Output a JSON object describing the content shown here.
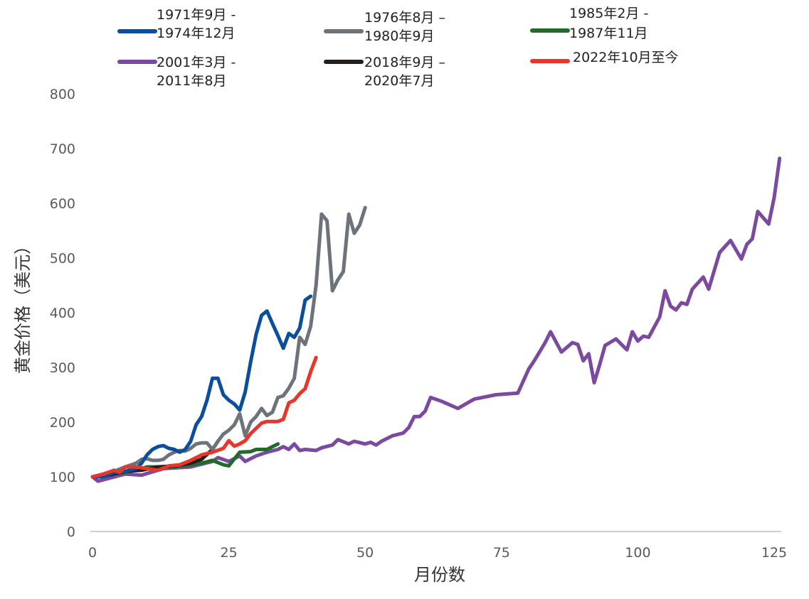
{
  "chart_data": {
    "type": "line",
    "title": "",
    "xlabel": "月份数",
    "ylabel": "黄金价格（美元）",
    "xlim": [
      0,
      125
    ],
    "ylim": [
      0,
      800
    ],
    "xticks": [
      "0",
      "25",
      "50",
      "75",
      "100",
      "125"
    ],
    "yticks": [
      "0",
      "100",
      "200",
      "300",
      "400",
      "500",
      "600",
      "700",
      "800"
    ],
    "grid": false,
    "legend_position": "top",
    "series": [
      {
        "name": "1971年9月 - 1974年12月",
        "legend_lines": [
          "1971年9月 -",
          "1974年12月"
        ],
        "color": "#0b4f9c",
        "x": [
          0,
          2,
          4,
          6,
          8,
          9,
          10,
          11,
          12,
          13,
          14,
          15,
          16,
          17,
          18,
          19,
          20,
          21,
          22,
          23,
          24,
          25,
          26,
          27,
          28,
          29,
          30,
          31,
          32,
          33,
          34,
          35,
          36,
          37,
          38,
          39,
          40
        ],
        "y": [
          100,
          100,
          108,
          110,
          115,
          125,
          140,
          150,
          155,
          157,
          152,
          150,
          145,
          150,
          165,
          195,
          210,
          240,
          280,
          280,
          250,
          240,
          233,
          222,
          255,
          310,
          360,
          395,
          403,
          380,
          358,
          335,
          362,
          355,
          372,
          423,
          430
        ]
      },
      {
        "name": "1976年8月 – 1980年9月",
        "legend_lines": [
          "1976年8月 –",
          "1980年9月"
        ],
        "color": "#6d737a",
        "x": [
          0,
          2,
          4,
          6,
          8,
          9,
          10,
          11,
          12,
          13,
          14,
          15,
          16,
          17,
          18,
          19,
          20,
          21,
          22,
          23,
          24,
          25,
          26,
          27,
          28,
          29,
          30,
          31,
          32,
          33,
          34,
          35,
          36,
          37,
          38,
          39,
          40,
          41,
          42,
          43,
          44,
          45,
          46,
          47,
          48,
          49,
          50
        ],
        "y": [
          100,
          102,
          110,
          118,
          125,
          132,
          133,
          130,
          130,
          132,
          140,
          145,
          148,
          147,
          152,
          160,
          162,
          162,
          150,
          165,
          178,
          185,
          195,
          215,
          175,
          200,
          210,
          225,
          212,
          218,
          245,
          248,
          262,
          280,
          355,
          342,
          375,
          450,
          580,
          568,
          440,
          460,
          475,
          580,
          545,
          560,
          592
        ]
      },
      {
        "name": "1985年2月 - 1987年11月",
        "legend_lines": [
          "1985年2月 -",
          "1987年11月"
        ],
        "color": "#1e6b2a",
        "x": [
          0,
          2,
          4,
          6,
          8,
          10,
          12,
          15,
          18,
          20,
          22,
          24,
          25,
          27,
          29,
          30,
          32,
          34
        ],
        "y": [
          100,
          100,
          105,
          108,
          112,
          118,
          118,
          118,
          122,
          125,
          130,
          122,
          120,
          145,
          146,
          150,
          150,
          160
        ]
      },
      {
        "name": "2001年3月 - 2011年8月",
        "legend_lines": [
          "2001年3月 -",
          "2011年8月"
        ],
        "color": "#7b4aa0",
        "x": [
          0,
          1,
          6,
          9,
          13,
          18,
          22,
          23,
          25,
          27,
          28,
          30,
          32,
          34,
          35,
          36,
          37,
          38,
          39,
          41,
          42,
          44,
          45,
          47,
          48,
          50,
          51,
          52,
          53,
          55,
          57,
          58,
          59,
          60,
          61,
          62,
          64,
          67,
          70,
          74,
          78,
          80,
          81,
          83,
          84,
          86,
          88,
          89,
          90,
          91,
          92,
          93,
          94,
          96,
          98,
          99,
          100,
          101,
          102,
          104,
          105,
          106,
          107,
          108,
          109,
          110,
          112,
          113,
          115,
          117,
          119,
          120,
          121,
          122,
          124,
          125,
          126
        ],
        "y": [
          100,
          92,
          105,
          103,
          115,
          118,
          128,
          135,
          128,
          138,
          128,
          138,
          145,
          150,
          155,
          150,
          160,
          148,
          150,
          148,
          153,
          158,
          168,
          160,
          165,
          160,
          163,
          158,
          165,
          175,
          180,
          190,
          210,
          210,
          220,
          245,
          238,
          225,
          242,
          250,
          253,
          297,
          312,
          345,
          365,
          328,
          345,
          342,
          312,
          325,
          272,
          305,
          340,
          352,
          332,
          365,
          348,
          357,
          355,
          392,
          440,
          412,
          405,
          418,
          415,
          443,
          465,
          443,
          510,
          532,
          498,
          525,
          535,
          585,
          562,
          610,
          682
        ]
      },
      {
        "name": "2018年9月 – 2020年7月",
        "legend_lines": [
          "2018年9月 –",
          "2020年7月"
        ],
        "color": "#231f1c",
        "x": [
          0,
          3,
          6,
          9,
          12,
          15,
          18,
          20,
          22,
          23
        ],
        "y": [
          100,
          103,
          110,
          112,
          118,
          120,
          125,
          132,
          150,
          165
        ]
      },
      {
        "name": "2022年10月至今",
        "legend_lines": [
          "2022年10月至今"
        ],
        "color": "#e8362a",
        "x": [
          0,
          2,
          4,
          5,
          6,
          8,
          10,
          12,
          14,
          16,
          18,
          20,
          22,
          24,
          25,
          26,
          27,
          28,
          29,
          31,
          32,
          34,
          35,
          36,
          37,
          38,
          39,
          40,
          41
        ],
        "y": [
          100,
          105,
          112,
          108,
          118,
          118,
          115,
          112,
          120,
          122,
          130,
          140,
          145,
          152,
          166,
          156,
          160,
          166,
          179,
          198,
          201,
          201,
          205,
          235,
          240,
          252,
          261,
          292,
          318
        ]
      }
    ]
  }
}
